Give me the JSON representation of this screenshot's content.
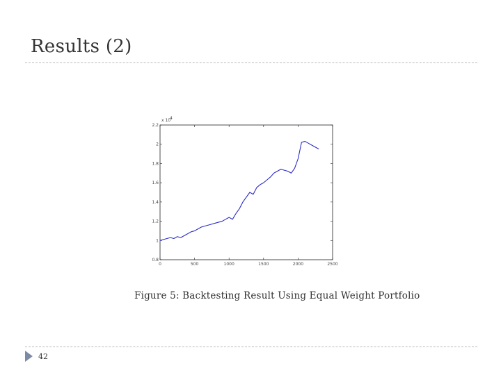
{
  "slide": {
    "title": "Results (2)",
    "page_number": "42",
    "caption": "Figure 5: Backtesting Result Using Equal Weight Portfolio"
  },
  "chart_data": {
    "type": "line",
    "title": "",
    "xlabel": "",
    "ylabel": "",
    "y_multiplier_label": "x 10",
    "y_multiplier_exponent": "4",
    "xlim": [
      0,
      2500
    ],
    "ylim": [
      0.8,
      2.2
    ],
    "xticks": [
      0,
      500,
      1000,
      1500,
      2000,
      2500
    ],
    "yticks": [
      0.8,
      1,
      1.2,
      1.4,
      1.6,
      1.8,
      2,
      2.2
    ],
    "grid": false,
    "line_color": "#2a2ac8",
    "series": [
      {
        "x": [
          0,
          50,
          100,
          150,
          200,
          250,
          300,
          350,
          400,
          450,
          500,
          550,
          600,
          650,
          700,
          750,
          800,
          850,
          900,
          950,
          1000,
          1050,
          1100,
          1150,
          1200,
          1250,
          1300,
          1350,
          1400,
          1450,
          1500,
          1550,
          1600,
          1650,
          1700,
          1750,
          1800,
          1850,
          1900,
          1950,
          2000,
          2050,
          2100,
          2150,
          2200,
          2250,
          2300
        ],
        "y": [
          1.0,
          1.01,
          1.02,
          1.03,
          1.02,
          1.04,
          1.03,
          1.05,
          1.07,
          1.09,
          1.1,
          1.12,
          1.14,
          1.15,
          1.16,
          1.17,
          1.18,
          1.19,
          1.2,
          1.22,
          1.24,
          1.22,
          1.28,
          1.33,
          1.4,
          1.45,
          1.5,
          1.48,
          1.55,
          1.58,
          1.6,
          1.63,
          1.66,
          1.7,
          1.72,
          1.74,
          1.73,
          1.72,
          1.7,
          1.75,
          1.85,
          2.02,
          2.03,
          2.01,
          1.99,
          1.97,
          1.95
        ]
      }
    ]
  }
}
